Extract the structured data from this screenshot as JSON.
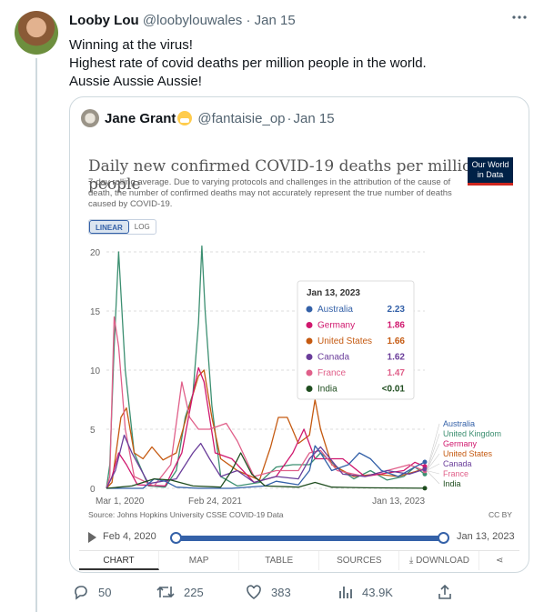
{
  "tweet": {
    "author_name": "Looby Lou",
    "author_handle": "@loobylouwales",
    "separator": "·",
    "date": "Jan 15",
    "more_icon": "more-horizontal-icon",
    "text_lines": [
      "Winning at the virus!",
      "Highest rate of covid deaths per million people in the world.",
      "Aussie Aussie Aussie!"
    ],
    "actions": {
      "replies": "50",
      "retweets": "225",
      "likes": "383",
      "views": "43.9K"
    }
  },
  "quote": {
    "author_name": "Jane Grant",
    "emoji": "face-with-medical-mask",
    "author_handle": "@fantaisie_op",
    "separator": "·",
    "date": "Jan 15"
  },
  "owid_chart": {
    "logo_line1": "Our World",
    "logo_line2": "in Data",
    "toggle_linear": "LINEAR",
    "toggle_log": "LOG",
    "source": "Source: Johns Hopkins University CSSE COVID-19 Data",
    "license": "CC BY",
    "timeline_start": "Feb 4, 2020",
    "timeline_end": "Jan 13, 2023",
    "tabs": [
      "CHART",
      "MAP",
      "TABLE",
      "SOURCES",
      "DOWNLOAD"
    ],
    "tooltip_date": "Jan 13, 2023"
  },
  "colors": {
    "Australia": "#3461a8",
    "United Kingdom": "#3c8f71",
    "Germany": "#d0186e",
    "United States": "#c55a11",
    "Canada": "#6a3d9a",
    "France": "#e0608a",
    "India": "#1f4d1f"
  },
  "chart_data": {
    "type": "line",
    "title": "Daily new confirmed COVID-19 deaths per million people",
    "subtitle": "7-day rolling average. Due to varying protocols and challenges in the attribution of the cause of death, the number of confirmed deaths may not accurately represent the true number of deaths caused by COVID-19.",
    "ylim": [
      0,
      20
    ],
    "y_ticks": [
      0,
      5,
      10,
      15,
      20
    ],
    "x_tick_labels": [
      "Mar 1, 2020",
      "Feb 24, 2021",
      "Jan 13, 2023"
    ],
    "x_range_years": [
      2020.17,
      2023.04
    ],
    "grid": true,
    "legend_placement": "right-end labels",
    "tooltip_rows": [
      {
        "country": "Australia",
        "value": "2.23"
      },
      {
        "country": "Germany",
        "value": "1.86"
      },
      {
        "country": "United States",
        "value": "1.66"
      },
      {
        "country": "Canada",
        "value": "1.62"
      },
      {
        "country": "France",
        "value": "1.47"
      },
      {
        "country": "India",
        "value": "<0.01"
      }
    ],
    "end_labels": [
      "Australia",
      "United Kingdom",
      "Germany",
      "United States",
      "Canada",
      "France",
      "India"
    ],
    "series": [
      {
        "name": "United Kingdom",
        "x": [
          2020.17,
          2020.2,
          2020.24,
          2020.28,
          2020.34,
          2020.42,
          2020.55,
          2020.7,
          2020.8,
          2020.88,
          2020.95,
          2021.0,
          2021.03,
          2021.06,
          2021.12,
          2021.2,
          2021.35,
          2021.55,
          2021.7,
          2021.85,
          2022.0,
          2022.1,
          2022.25,
          2022.4,
          2022.55,
          2022.7,
          2022.85,
          2022.95,
          2023.04
        ],
        "y": [
          0,
          2,
          12,
          20,
          10,
          3,
          0.2,
          0.1,
          1.5,
          6,
          8,
          14,
          20.5,
          15,
          7,
          1,
          0.2,
          0.5,
          1.8,
          2,
          2,
          3,
          1.8,
          0.8,
          1.5,
          0.7,
          1,
          1.8,
          1.2
        ]
      },
      {
        "name": "United States",
        "x": [
          2020.17,
          2020.22,
          2020.3,
          2020.35,
          2020.42,
          2020.5,
          2020.58,
          2020.68,
          2020.8,
          2020.92,
          2021.0,
          2021.05,
          2021.12,
          2021.2,
          2021.35,
          2021.55,
          2021.65,
          2021.72,
          2021.8,
          2021.9,
          2022.0,
          2022.05,
          2022.1,
          2022.2,
          2022.4,
          2022.6,
          2022.8,
          2022.95,
          2023.04
        ],
        "y": [
          0,
          0.5,
          6,
          6.8,
          3,
          2.5,
          3.5,
          2.4,
          3,
          7,
          9.5,
          10,
          6,
          2.5,
          1.5,
          0.7,
          3.5,
          6,
          6,
          3.8,
          4.5,
          7.5,
          5,
          2,
          1,
          1.2,
          1,
          1.4,
          1.66
        ]
      },
      {
        "name": "Germany",
        "x": [
          2020.17,
          2020.22,
          2020.28,
          2020.35,
          2020.45,
          2020.7,
          2020.85,
          2020.95,
          2021.0,
          2021.05,
          2021.15,
          2021.3,
          2021.5,
          2021.7,
          2021.85,
          2021.95,
          2022.05,
          2022.2,
          2022.3,
          2022.5,
          2022.7,
          2022.85,
          2022.95,
          2023.04
        ],
        "y": [
          0,
          1,
          3,
          2,
          0.3,
          0.2,
          3,
          8,
          10.2,
          9,
          3,
          2.5,
          0.5,
          1,
          3,
          5,
          2.5,
          2.5,
          2.5,
          1,
          1.3,
          1.5,
          2.2,
          1.86
        ]
      },
      {
        "name": "France",
        "x": [
          2020.17,
          2020.2,
          2020.24,
          2020.28,
          2020.34,
          2020.42,
          2020.6,
          2020.75,
          2020.85,
          2020.92,
          2021.0,
          2021.1,
          2021.25,
          2021.35,
          2021.5,
          2021.7,
          2021.9,
          2022.0,
          2022.1,
          2022.25,
          2022.5,
          2022.7,
          2022.9,
          2023.04
        ],
        "y": [
          0,
          1,
          14.5,
          12,
          5,
          1,
          0.2,
          2,
          9,
          6,
          5,
          5,
          5.5,
          4,
          1,
          1.5,
          1.5,
          3,
          3.2,
          1.5,
          1,
          1.5,
          2,
          1.47
        ]
      },
      {
        "name": "Canada",
        "x": [
          2020.17,
          2020.25,
          2020.33,
          2020.4,
          2020.55,
          2020.8,
          2020.95,
          2021.02,
          2021.1,
          2021.2,
          2021.35,
          2021.5,
          2021.7,
          2021.9,
          2022.0,
          2022.1,
          2022.3,
          2022.5,
          2022.7,
          2022.9,
          2023.04
        ],
        "y": [
          0,
          1.5,
          4.5,
          3,
          0.4,
          0.8,
          3,
          3.8,
          2.5,
          1,
          1.5,
          0.5,
          1,
          0.8,
          2.5,
          3.5,
          1.2,
          1,
          1.5,
          1.2,
          1.62
        ]
      },
      {
        "name": "Australia",
        "x": [
          2020.17,
          2020.5,
          2020.6,
          2020.7,
          2020.8,
          2021.0,
          2021.3,
          2021.6,
          2021.7,
          2021.9,
          2022.0,
          2022.05,
          2022.1,
          2022.2,
          2022.35,
          2022.45,
          2022.55,
          2022.65,
          2022.8,
          2022.95,
          2023.04
        ],
        "y": [
          0,
          0,
          0.8,
          0.6,
          0.1,
          0,
          0,
          0.2,
          0.6,
          0.3,
          1.5,
          3.6,
          3,
          1.5,
          2,
          3,
          2.5,
          1.5,
          1,
          1.8,
          2.23
        ]
      },
      {
        "name": "India",
        "x": [
          2020.17,
          2020.4,
          2020.6,
          2020.75,
          2020.95,
          2021.2,
          2021.3,
          2021.38,
          2021.48,
          2021.6,
          2021.9,
          2022.05,
          2022.2,
          2022.5,
          2023.04
        ],
        "y": [
          0,
          0.2,
          0.8,
          0.7,
          0.2,
          0.1,
          1.5,
          3,
          1.2,
          0.2,
          0.1,
          0.5,
          0.1,
          0.05,
          0.01
        ]
      }
    ]
  }
}
